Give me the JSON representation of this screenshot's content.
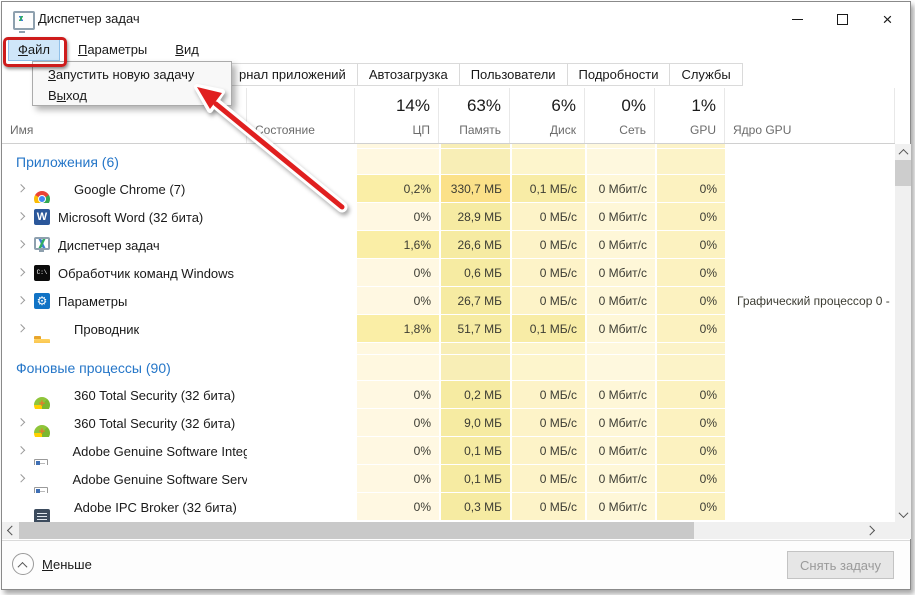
{
  "window": {
    "title": "Диспетчер задач"
  },
  "menu": {
    "items": [
      {
        "pre": "",
        "u": "Ф",
        "rest": "айл"
      },
      {
        "pre": "",
        "u": "П",
        "rest": "араметры"
      },
      {
        "pre": "",
        "u": "В",
        "rest": "ид"
      }
    ]
  },
  "file_menu": {
    "items": [
      {
        "pre": "",
        "u": "З",
        "rest": "апустить новую задачу"
      },
      {
        "pre": "В",
        "u": "ы",
        "rest": "ход"
      }
    ]
  },
  "tabs": [
    "рнал приложений",
    "Автозагрузка",
    "Пользователи",
    "Подробности",
    "Службы"
  ],
  "table": {
    "name_col": "Имя",
    "state_col": "Состояние",
    "usage_cols": [
      {
        "pct": "14%",
        "label": "ЦП"
      },
      {
        "pct": "63%",
        "label": "Память"
      },
      {
        "pct": "6%",
        "label": "Диск"
      },
      {
        "pct": "0%",
        "label": "Сеть"
      },
      {
        "pct": "1%",
        "label": "GPU"
      }
    ],
    "gpu_core_col": "Ядро GPU",
    "rows": [
      {
        "type": "pad"
      },
      {
        "type": "section",
        "label": "Приложения (6)"
      },
      {
        "type": "proc",
        "expand": true,
        "icon": "chrome",
        "name": "Google Chrome (7)",
        "cpu": "0,2%",
        "cpuS": "cpuA",
        "mem": "330,7 МБ",
        "memS": "memHi",
        "disk": "0,1 МБ/с",
        "diskS": "diskA",
        "net": "0 Мбит/с",
        "gpu": "0%",
        "core": ""
      },
      {
        "type": "proc",
        "expand": true,
        "icon": "word",
        "name": "Microsoft Word (32 бита)",
        "cpu": "0%",
        "cpuS": "cpu0",
        "mem": "28,9 МБ",
        "memS": "mem0",
        "disk": "0 МБ/с",
        "diskS": "disk0",
        "net": "0 Мбит/с",
        "gpu": "0%",
        "core": ""
      },
      {
        "type": "proc",
        "expand": true,
        "icon": "taskmgr",
        "name": "Диспетчер задач",
        "cpu": "1,6%",
        "cpuS": "cpuA",
        "mem": "26,6 МБ",
        "memS": "mem0",
        "disk": "0 МБ/с",
        "diskS": "disk0",
        "net": "0 Мбит/с",
        "gpu": "0%",
        "core": ""
      },
      {
        "type": "proc",
        "expand": true,
        "icon": "cmd",
        "name": "Обработчик команд Windows",
        "cpu": "0%",
        "cpuS": "cpu0",
        "mem": "0,6 МБ",
        "memS": "mem0",
        "disk": "0 МБ/с",
        "diskS": "disk0",
        "net": "0 Мбит/с",
        "gpu": "0%",
        "core": ""
      },
      {
        "type": "proc",
        "expand": true,
        "icon": "gear",
        "name": "Параметры",
        "cpu": "0%",
        "cpuS": "cpu0",
        "mem": "26,7 МБ",
        "memS": "mem0",
        "disk": "0 МБ/с",
        "diskS": "disk0",
        "net": "0 Мбит/с",
        "gpu": "0%",
        "core": "Графический процессор 0 - "
      },
      {
        "type": "proc",
        "expand": true,
        "icon": "folder",
        "name": "Проводник",
        "cpu": "1,8%",
        "cpuS": "cpuA",
        "mem": "51,7 МБ",
        "memS": "mem0",
        "disk": "0,1 МБ/с",
        "diskS": "diskA",
        "net": "0 Мбит/с",
        "gpu": "0%",
        "core": ""
      },
      {
        "type": "spacer"
      },
      {
        "type": "section",
        "label": "Фоновые процессы (90)"
      },
      {
        "type": "proc",
        "expand": false,
        "icon": "ts360",
        "name": "360 Total Security (32 бита)",
        "cpu": "0%",
        "cpuS": "cpu0",
        "mem": "0,2 МБ",
        "memS": "mem0",
        "disk": "0 МБ/с",
        "diskS": "disk0",
        "net": "0 Мбит/с",
        "gpu": "0%",
        "core": ""
      },
      {
        "type": "proc",
        "expand": true,
        "icon": "ts360",
        "name": "360 Total Security (32 бита)",
        "cpu": "0%",
        "cpuS": "cpu0",
        "mem": "9,0 МБ",
        "memS": "mem0",
        "disk": "0 МБ/с",
        "diskS": "disk0",
        "net": "0 Мбит/с",
        "gpu": "0%",
        "core": ""
      },
      {
        "type": "proc",
        "expand": true,
        "icon": "adobedoc",
        "name": "Adobe Genuine Software Integri...",
        "cpu": "0%",
        "cpuS": "cpu0",
        "mem": "0,1 МБ",
        "memS": "mem0",
        "disk": "0 МБ/с",
        "diskS": "disk0",
        "net": "0 Мбит/с",
        "gpu": "0%",
        "core": ""
      },
      {
        "type": "proc",
        "expand": true,
        "icon": "adobedoc",
        "name": "Adobe Genuine Software Servic...",
        "cpu": "0%",
        "cpuS": "cpu0",
        "mem": "0,1 МБ",
        "memS": "mem0",
        "disk": "0 МБ/с",
        "diskS": "disk0",
        "net": "0 Мбит/с",
        "gpu": "0%",
        "core": ""
      },
      {
        "type": "proc",
        "expand": false,
        "icon": "adobeipc",
        "name": "Adobe IPC Broker (32 бита)",
        "cpu": "0%",
        "cpuS": "cpu0",
        "mem": "0,3 МБ",
        "memS": "mem0",
        "disk": "0 МБ/с",
        "diskS": "disk0",
        "net": "0 Мбит/с",
        "gpu": "0%",
        "core": ""
      }
    ]
  },
  "palette": {
    "section_text": "#2576c8",
    "annotation_red": "#ce1c1c",
    "heat": {
      "cpu0": "#FFF8E2",
      "cpuA": "#FAEEA6",
      "mem0": "#F6EBA2",
      "memHi": "#FBE189",
      "disk0": "#FDF3C8",
      "diskA": "#F8ECA6",
      "net0": "#FEF7D8",
      "gpu0": "#FCF2C0",
      "core0": "#FFFFFF",
      "secCpu": "#FFF8E0",
      "secMem": "#F8EEB6",
      "secDisk": "#FDF5CC",
      "secNet": "#FEF8DE",
      "secGpu": "#FCF3C8",
      "secCore": "#FFFFFF"
    }
  },
  "footer": {
    "less": {
      "pre": "",
      "u": "М",
      "rest": "еньше"
    },
    "end_task": {
      "pre": "Снять за",
      "u": "д",
      "rest": "ачу"
    }
  }
}
